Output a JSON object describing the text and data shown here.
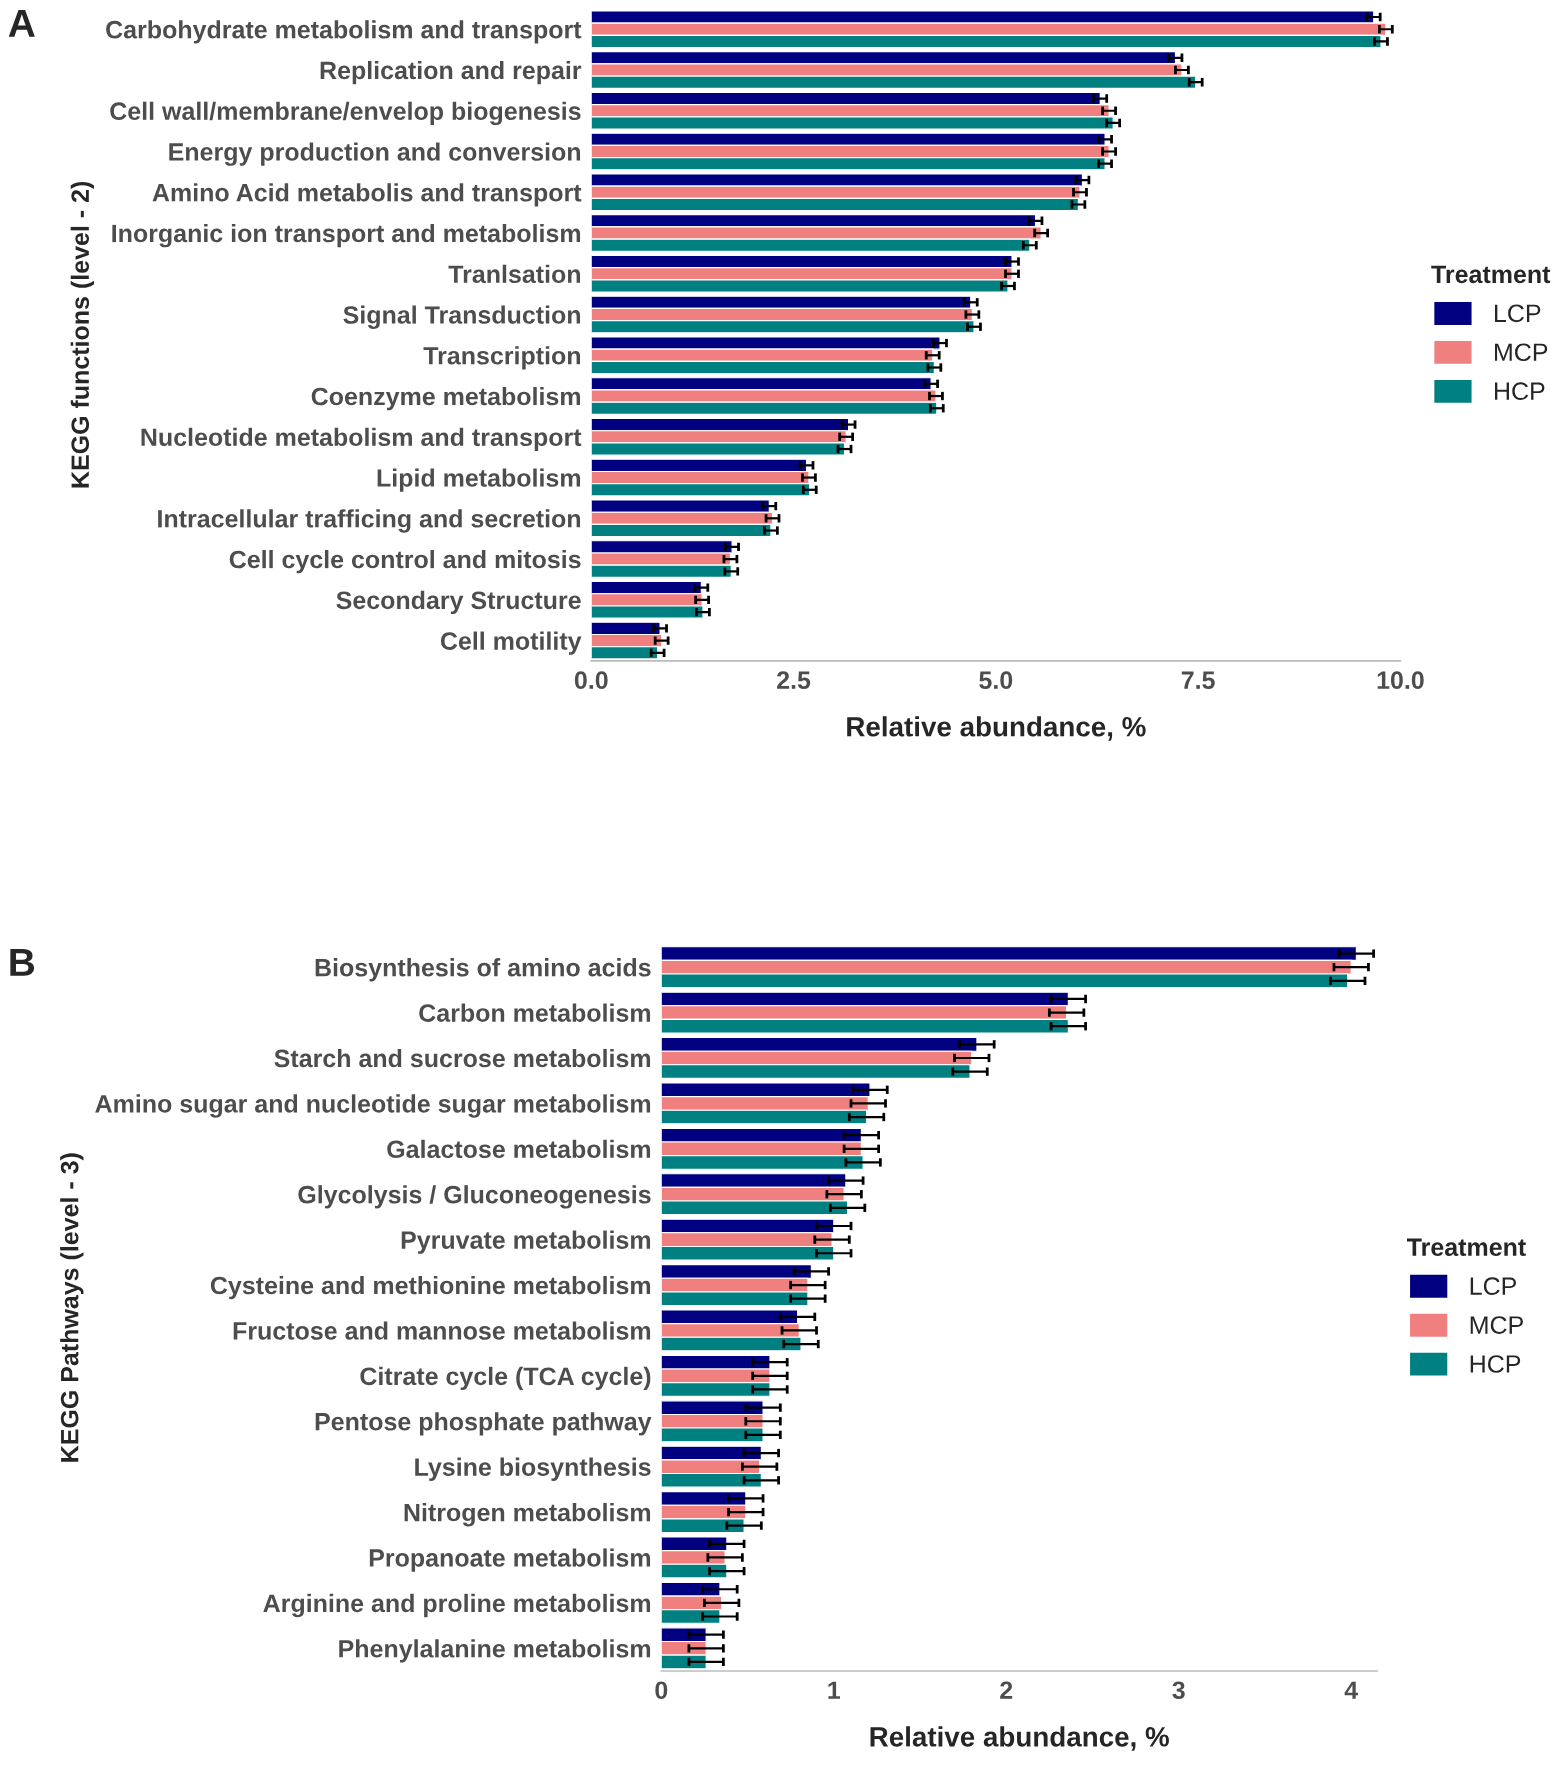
{
  "chart_data": [
    {
      "type": "bar",
      "title": "A",
      "orientation": "horizontal",
      "xlabel": "Relative abundance, %",
      "ylabel": "KEGG functions (level - 2)",
      "legend_title": "Treatment",
      "legend": "right",
      "categories": [
        "Carbohydrate metabolism and transport",
        "Replication and repair",
        "Cell wall/membrane/envelop biogenesis",
        "Energy production and conversion",
        "Amino Acid metabolis and transport",
        "Inorganic ion transport and metabolism",
        "Tranlsation",
        "Signal Transduction",
        "Transcription",
        "Coenzyme metabolism",
        "Nucleotide metabolism and transport",
        "Lipid metabolism",
        "Intracellular trafficing and secretion",
        "Cell cycle control and mitosis",
        "Secondary Structure",
        "Cell motility"
      ],
      "xlim": [
        0,
        10
      ],
      "xticks": [
        {
          "value": 0,
          "label": "0.0"
        },
        2.5,
        {
          "value": 5,
          "label": "5.0"
        },
        7.5,
        {
          "value": 10,
          "label": "10.0"
        }
      ],
      "grid": false,
      "series": [
        {
          "name": "LCP",
          "color": "#000080",
          "values": [
            9.67,
            7.22,
            6.29,
            6.35,
            6.07,
            5.49,
            5.2,
            4.69,
            4.31,
            4.2,
            3.18,
            2.66,
            2.2,
            1.74,
            1.36,
            0.85
          ],
          "errors": [
            0.08,
            0.08,
            0.08,
            0.08,
            0.08,
            0.08,
            0.08,
            0.08,
            0.08,
            0.08,
            0.08,
            0.08,
            0.08,
            0.08,
            0.08,
            0.08
          ]
        },
        {
          "name": "MCP",
          "color": "#f08080",
          "values": [
            9.82,
            7.3,
            6.4,
            6.4,
            6.04,
            5.56,
            5.2,
            4.71,
            4.22,
            4.26,
            3.15,
            2.69,
            2.24,
            1.72,
            1.37,
            0.87
          ],
          "errors": [
            0.08,
            0.08,
            0.08,
            0.08,
            0.08,
            0.08,
            0.08,
            0.08,
            0.08,
            0.08,
            0.08,
            0.08,
            0.08,
            0.08,
            0.08,
            0.08
          ]
        },
        {
          "name": "HCP",
          "color": "#008080",
          "values": [
            9.76,
            7.47,
            6.45,
            6.35,
            6.02,
            5.42,
            5.15,
            4.73,
            4.24,
            4.27,
            3.13,
            2.7,
            2.22,
            1.73,
            1.38,
            0.82
          ],
          "errors": [
            0.08,
            0.08,
            0.08,
            0.08,
            0.08,
            0.08,
            0.08,
            0.08,
            0.08,
            0.08,
            0.08,
            0.08,
            0.08,
            0.08,
            0.08,
            0.08
          ]
        }
      ]
    },
    {
      "type": "bar",
      "title": "B",
      "orientation": "horizontal",
      "xlabel": "Relative abundance, %",
      "ylabel": "KEGG Pathways (level - 3)",
      "legend_title": "Treatment",
      "legend": "right",
      "categories": [
        "Biosynthesis of amino acids",
        "Carbon metabolism",
        "Starch and sucrose metabolism",
        "Amino sugar and nucleotide sugar metabolism",
        "Galactose metabolism",
        "Glycolysis / Gluconeogenesis",
        "Pyruvate metabolism",
        "Cysteine and methionine metabolism",
        "Fructose and mannose metabolism",
        "Citrate cycle (TCA cycle)",
        "Pentose phosphate pathway",
        "Lysine biosynthesis",
        "Nitrogen metabolism",
        "Propanoate metabolism",
        "Arginine and proline metabolism",
        "Phenylalanine metabolism"
      ],
      "xlim": [
        0,
        4.15
      ],
      "xticks": [
        0,
        1,
        2,
        3,
        4
      ],
      "grid": false,
      "series": [
        {
          "name": "LCP",
          "color": "#000080",
          "values": [
            4.03,
            2.36,
            1.83,
            1.21,
            1.16,
            1.07,
            1.0,
            0.87,
            0.79,
            0.63,
            0.59,
            0.58,
            0.49,
            0.38,
            0.34,
            0.26
          ],
          "errors": [
            0.1,
            0.1,
            0.1,
            0.1,
            0.1,
            0.1,
            0.1,
            0.1,
            0.1,
            0.1,
            0.1,
            0.1,
            0.1,
            0.1,
            0.1,
            0.1
          ]
        },
        {
          "name": "MCP",
          "color": "#f08080",
          "values": [
            4.0,
            2.35,
            1.8,
            1.2,
            1.16,
            1.06,
            0.99,
            0.85,
            0.8,
            0.63,
            0.59,
            0.57,
            0.49,
            0.37,
            0.35,
            0.26
          ],
          "errors": [
            0.1,
            0.1,
            0.1,
            0.1,
            0.1,
            0.1,
            0.1,
            0.1,
            0.1,
            0.1,
            0.1,
            0.1,
            0.1,
            0.1,
            0.1,
            0.1
          ]
        },
        {
          "name": "HCP",
          "color": "#008080",
          "values": [
            3.98,
            2.36,
            1.79,
            1.19,
            1.17,
            1.08,
            1.0,
            0.85,
            0.81,
            0.63,
            0.59,
            0.58,
            0.48,
            0.38,
            0.34,
            0.26
          ],
          "errors": [
            0.1,
            0.1,
            0.1,
            0.1,
            0.1,
            0.1,
            0.1,
            0.1,
            0.1,
            0.1,
            0.1,
            0.1,
            0.1,
            0.1,
            0.1,
            0.1
          ]
        }
      ]
    }
  ]
}
